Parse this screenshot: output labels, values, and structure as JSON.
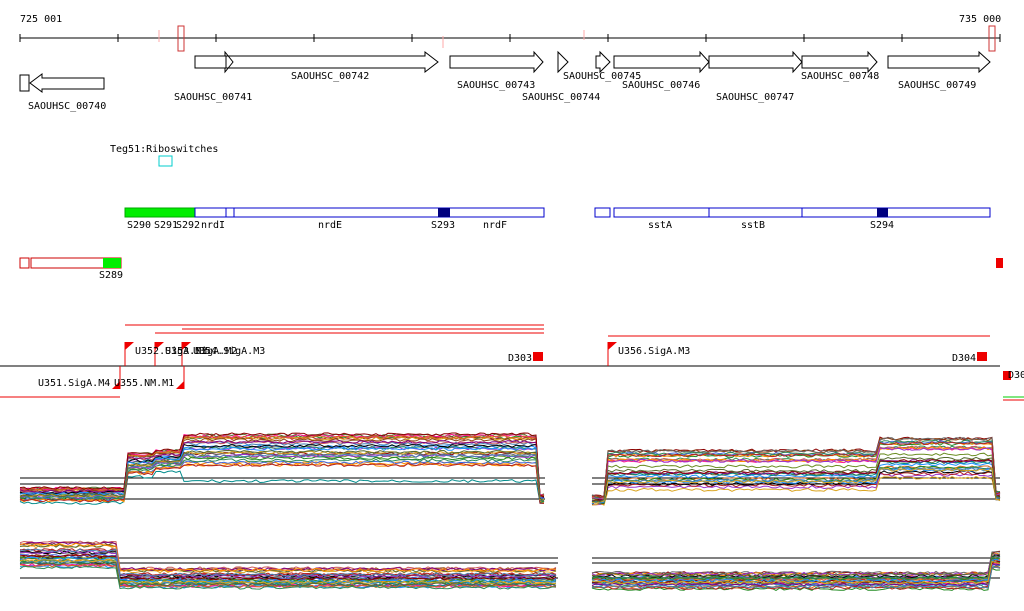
{
  "colors": {
    "axis": "#000000",
    "gene_outline": "#000000",
    "feature_blue": "#0000cc",
    "feature_navy": "#000080",
    "srna_green": "#00ee00",
    "red": "#ee0000",
    "riboswitch_cyan": "#00cccc",
    "marker_red": "#cc3333"
  },
  "ruler": {
    "start_label": "725 001",
    "end_label": "735 000"
  },
  "genes": [
    {
      "label": "SAOUHSC_00740",
      "strand": "-"
    },
    {
      "label": "SAOUHSC_00741",
      "strand": "+"
    },
    {
      "label": "SAOUHSC_00742",
      "strand": "+"
    },
    {
      "label": "SAOUHSC_00743",
      "strand": "+"
    },
    {
      "label": "SAOUHSC_00744",
      "strand": "+"
    },
    {
      "label": "SAOUHSC_00745",
      "strand": "+"
    },
    {
      "label": "SAOUHSC_00746",
      "strand": "+"
    },
    {
      "label": "SAOUHSC_00747",
      "strand": "+"
    },
    {
      "label": "SAOUHSC_00748",
      "strand": "+"
    },
    {
      "label": "SAOUHSC_00749",
      "strand": "+"
    }
  ],
  "riboswitch_label": "Teg51:Riboswitches",
  "features_plus": [
    "S290",
    "S291",
    "S292",
    "nrdI",
    "nrdE",
    "S293",
    "nrdF",
    "sstA",
    "sstB",
    "S294"
  ],
  "features_minus": [
    "S289"
  ],
  "promoters": [
    "U352.SigA.M3",
    "U353.SigA.M2",
    "U354.SigA.M3",
    "U356.SigA.M3",
    "U351.SigA.M4",
    "U355.NM.M1"
  ],
  "terminators": [
    "D303",
    "D304",
    "D30"
  ]
}
